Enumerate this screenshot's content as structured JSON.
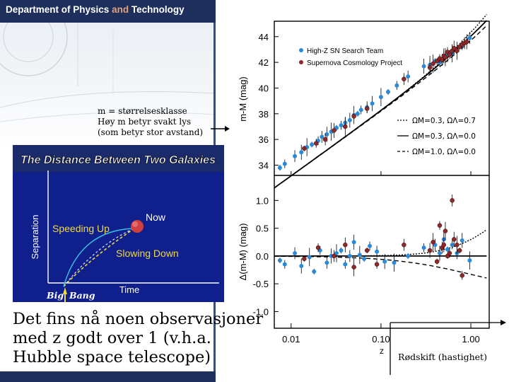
{
  "header": {
    "dept_prefix": "Department of Physics",
    "dept_and": "and",
    "dept_suffix": "Technology"
  },
  "note": {
    "line1": "m = størrelsesklasse",
    "line2": "Høy m betyr svakt lys",
    "line3": "(som betyr stor avstand)"
  },
  "inset": {
    "title": "The Distance Between Two Galaxies",
    "ylabel": "Separation",
    "xlabel": "Time",
    "labels": {
      "now": "Now",
      "speeding": "Speeding Up",
      "slowing": "Slowing Down",
      "bigbang_1": "Big",
      "bigbang_2": "Bang"
    }
  },
  "body_text": {
    "line1": "Det fins nå noen observasjoner",
    "line2": "med z godt over 1 (v.h.a.",
    "line3": "Hubble space telescope)"
  },
  "redshift_label": "Rødskift (hastighet)",
  "colors": {
    "navy": "#1d2f5a",
    "inset_bg": "#0f1f8c",
    "high_z": "#2a8ad8",
    "scp": "#8a2a2a",
    "speed": "#f0d840",
    "slow": "#f0d840",
    "now": "#c83030"
  },
  "chart_data": [
    {
      "type": "scatter",
      "panel": "top",
      "ylabel": "m-M (mag)",
      "xscale": "log",
      "xlim": [
        0.0065,
        1.6
      ],
      "ylim": [
        33.2,
        45.2
      ],
      "yticks": [
        "44",
        "42",
        "40",
        "38",
        "36",
        "34"
      ],
      "ytick_values": [
        44,
        42,
        40,
        38,
        36,
        34
      ],
      "legend": {
        "placement": "top-left",
        "entries": [
          "High-Z SN Search Team",
          "Supernova Cosmology Project"
        ]
      },
      "model_legend": {
        "placement": "bottom-right",
        "entries": [
          {
            "style": "dotted",
            "label": "ΩM=0.3, ΩΛ=0.7"
          },
          {
            "style": "solid",
            "label": "ΩM=0.3, ΩΛ=0.0"
          },
          {
            "style": "dashed",
            "label": "ΩM=1.0, ΩΛ=0.0"
          }
        ]
      },
      "series": [
        {
          "name": "High-Z SN Search Team",
          "x": [
            0.0075,
            0.0085,
            0.011,
            0.013,
            0.015,
            0.017,
            0.02,
            0.022,
            0.025,
            0.028,
            0.032,
            0.036,
            0.04,
            0.045,
            0.05,
            0.055,
            0.06,
            0.07,
            0.08,
            0.1,
            0.12,
            0.15,
            0.2,
            0.3,
            0.35,
            0.4,
            0.45,
            0.5,
            0.55,
            0.62,
            0.7,
            0.8,
            0.97
          ],
          "y": [
            33.8,
            34.1,
            34.7,
            35.0,
            35.4,
            35.6,
            35.9,
            36.2,
            36.4,
            36.6,
            36.9,
            37.1,
            37.3,
            37.5,
            37.9,
            38.0,
            38.3,
            38.5,
            38.8,
            39.3,
            39.7,
            40.2,
            40.9,
            41.7,
            41.8,
            42.1,
            42.0,
            42.4,
            42.6,
            42.7,
            42.9,
            43.3,
            43.9
          ]
        },
        {
          "name": "Supernova Cosmology Project",
          "x": [
            0.014,
            0.019,
            0.024,
            0.03,
            0.04,
            0.05,
            0.07,
            0.18,
            0.35,
            0.38,
            0.42,
            0.45,
            0.48,
            0.5,
            0.52,
            0.55,
            0.58,
            0.62,
            0.65,
            0.7,
            0.75,
            0.8,
            0.85,
            0.9
          ],
          "y": [
            35.3,
            35.7,
            36.0,
            36.7,
            37.0,
            37.8,
            38.4,
            40.7,
            41.6,
            41.9,
            42.1,
            42.3,
            42.2,
            42.5,
            42.4,
            42.8,
            42.6,
            42.9,
            43.1,
            42.9,
            43.2,
            43.4,
            43.5,
            43.6
          ]
        }
      ]
    },
    {
      "type": "scatter",
      "panel": "bottom",
      "ylabel": "Δ(m-M) (mag)",
      "xlabel": "z",
      "xscale": "log",
      "xlim": [
        0.0065,
        1.6
      ],
      "ylim": [
        -1.3,
        1.45
      ],
      "yticks": [
        "1.0",
        "0.5",
        "0.0",
        "-0.5",
        "-1.0"
      ],
      "ytick_values": [
        1.0,
        0.5,
        0.0,
        -0.5,
        -1.0
      ],
      "xticks": [
        "0.01",
        "0.10",
        "1.00"
      ],
      "xtick_values": [
        0.01,
        0.1,
        1.0
      ],
      "series": [
        {
          "name": "High-Z SN Search Team",
          "x": [
            0.0075,
            0.0085,
            0.011,
            0.013,
            0.016,
            0.018,
            0.021,
            0.025,
            0.028,
            0.032,
            0.036,
            0.04,
            0.045,
            0.05,
            0.058,
            0.065,
            0.075,
            0.09,
            0.11,
            0.14,
            0.2,
            0.3,
            0.4,
            0.45,
            0.5,
            0.55,
            0.62,
            0.7,
            0.8,
            0.97
          ],
          "y": [
            -0.08,
            -0.15,
            0.05,
            -0.18,
            -0.02,
            -0.28,
            0.1,
            -0.12,
            0.0,
            0.05,
            0.1,
            -0.15,
            0.0,
            0.25,
            0.02,
            -0.05,
            0.18,
            0.08,
            -0.1,
            -0.12,
            0.0,
            0.15,
            0.2,
            0.05,
            0.3,
            0.12,
            0.2,
            0.05,
            0.28,
            -0.08
          ]
        },
        {
          "name": "Supernova Cosmology Project",
          "x": [
            0.014,
            0.02,
            0.03,
            0.04,
            0.05,
            0.07,
            0.09,
            0.18,
            0.35,
            0.38,
            0.42,
            0.45,
            0.48,
            0.5,
            0.52,
            0.55,
            0.58,
            0.62,
            0.65,
            0.7,
            0.75,
            0.8
          ],
          "y": [
            -0.05,
            0.15,
            0.0,
            0.2,
            -0.2,
            0.1,
            -0.15,
            0.2,
            0.1,
            0.25,
            -0.1,
            0.55,
            0.15,
            0.2,
            0.45,
            0.0,
            0.05,
            1.0,
            0.3,
            0.2,
            0.1,
            -0.35
          ]
        }
      ]
    }
  ]
}
